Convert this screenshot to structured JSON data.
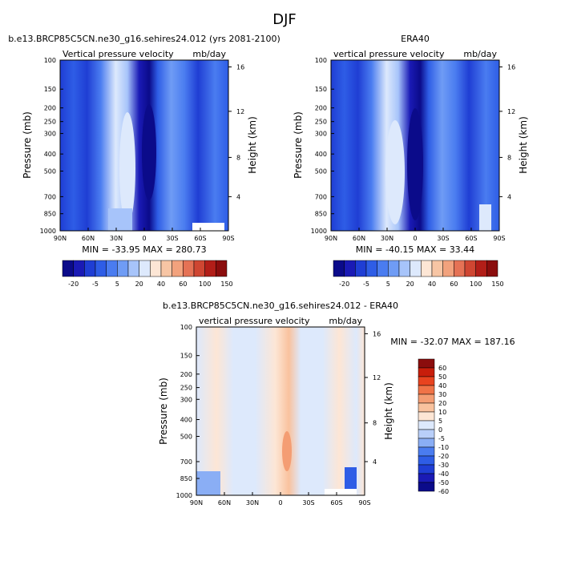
{
  "page": {
    "title": "DJF"
  },
  "colors": {
    "panel_scale": [
      "#0b0b8a",
      "#1a1ab5",
      "#1f3ed4",
      "#2e5de6",
      "#4a7cf0",
      "#6f9cf5",
      "#a7c4fa",
      "#dde9fc",
      "#fde6d5",
      "#f7c5a4",
      "#f2a27d",
      "#e57255",
      "#cf4632",
      "#b21e18",
      "#8b0d0d"
    ],
    "diff_scale": [
      "#0b0b8a",
      "#1a1ab5",
      "#1f3ed4",
      "#2e5de6",
      "#4a7cf0",
      "#8aaef5",
      "#b9cff9",
      "#dde9fc",
      "#fde6d5",
      "#f9c29e",
      "#f49d73",
      "#f07347",
      "#e8431f",
      "#c81e0b",
      "#8b0d0d"
    ]
  },
  "chart_data": [
    {
      "type": "heatmap",
      "title": "b.e13.BRCP85C5CN.ne30_g16.sehires24.012 (yrs 2081-2100)",
      "subtitle_left": "Vertical pressure velocity",
      "subtitle_right": "mb/day",
      "ylabel": "Pressure (mb)",
      "ylabel_right": "Height (km)",
      "x_ticks": [
        "90N",
        "60N",
        "30N",
        "0",
        "30S",
        "60S",
        "90S"
      ],
      "y_ticks": [
        "100",
        "150",
        "200",
        "250",
        "300",
        "400",
        "500",
        "700",
        "850",
        "1000"
      ],
      "y_right_ticks": [
        "16",
        "12",
        "8",
        "4"
      ],
      "stats": "MIN = -33.95  MAX = 280.73",
      "colorbar_labels": [
        "-20",
        "-5",
        "5",
        "20",
        "40",
        "60",
        "100",
        "150"
      ]
    },
    {
      "type": "heatmap",
      "title": "ERA40",
      "subtitle_left": "vertical pressure velocity",
      "subtitle_right": "mb/day",
      "ylabel": "Pressure (mb)",
      "ylabel_right": "Height (km)",
      "x_ticks": [
        "90N",
        "60N",
        "30N",
        "0",
        "30S",
        "60S",
        "90S"
      ],
      "y_ticks": [
        "100",
        "150",
        "200",
        "250",
        "300",
        "400",
        "500",
        "700",
        "850",
        "1000"
      ],
      "y_right_ticks": [
        "16",
        "12",
        "8",
        "4"
      ],
      "stats": "MIN = -40.15  MAX =  33.44",
      "colorbar_labels": [
        "-20",
        "-5",
        "5",
        "20",
        "40",
        "60",
        "100",
        "150"
      ]
    },
    {
      "type": "heatmap",
      "title": "b.e13.BRCP85C5CN.ne30_g16.sehires24.012 - ERA40",
      "subtitle_left": "vertical pressure velocity",
      "subtitle_right": "mb/day",
      "ylabel": "Pressure (mb)",
      "ylabel_right": "Height (km)",
      "x_ticks": [
        "90N",
        "60N",
        "30N",
        "0",
        "30S",
        "60S",
        "90S"
      ],
      "y_ticks": [
        "100",
        "150",
        "200",
        "250",
        "300",
        "400",
        "500",
        "700",
        "850",
        "1000"
      ],
      "y_right_ticks": [
        "16",
        "12",
        "8",
        "4"
      ],
      "stats": "MIN = -32.07  MAX = 187.16",
      "colorbar_labels": [
        "60",
        "50",
        "40",
        "30",
        "20",
        "10",
        "5",
        "0",
        "-5",
        "-10",
        "-20",
        "-30",
        "-40",
        "-50",
        "-60"
      ]
    }
  ]
}
